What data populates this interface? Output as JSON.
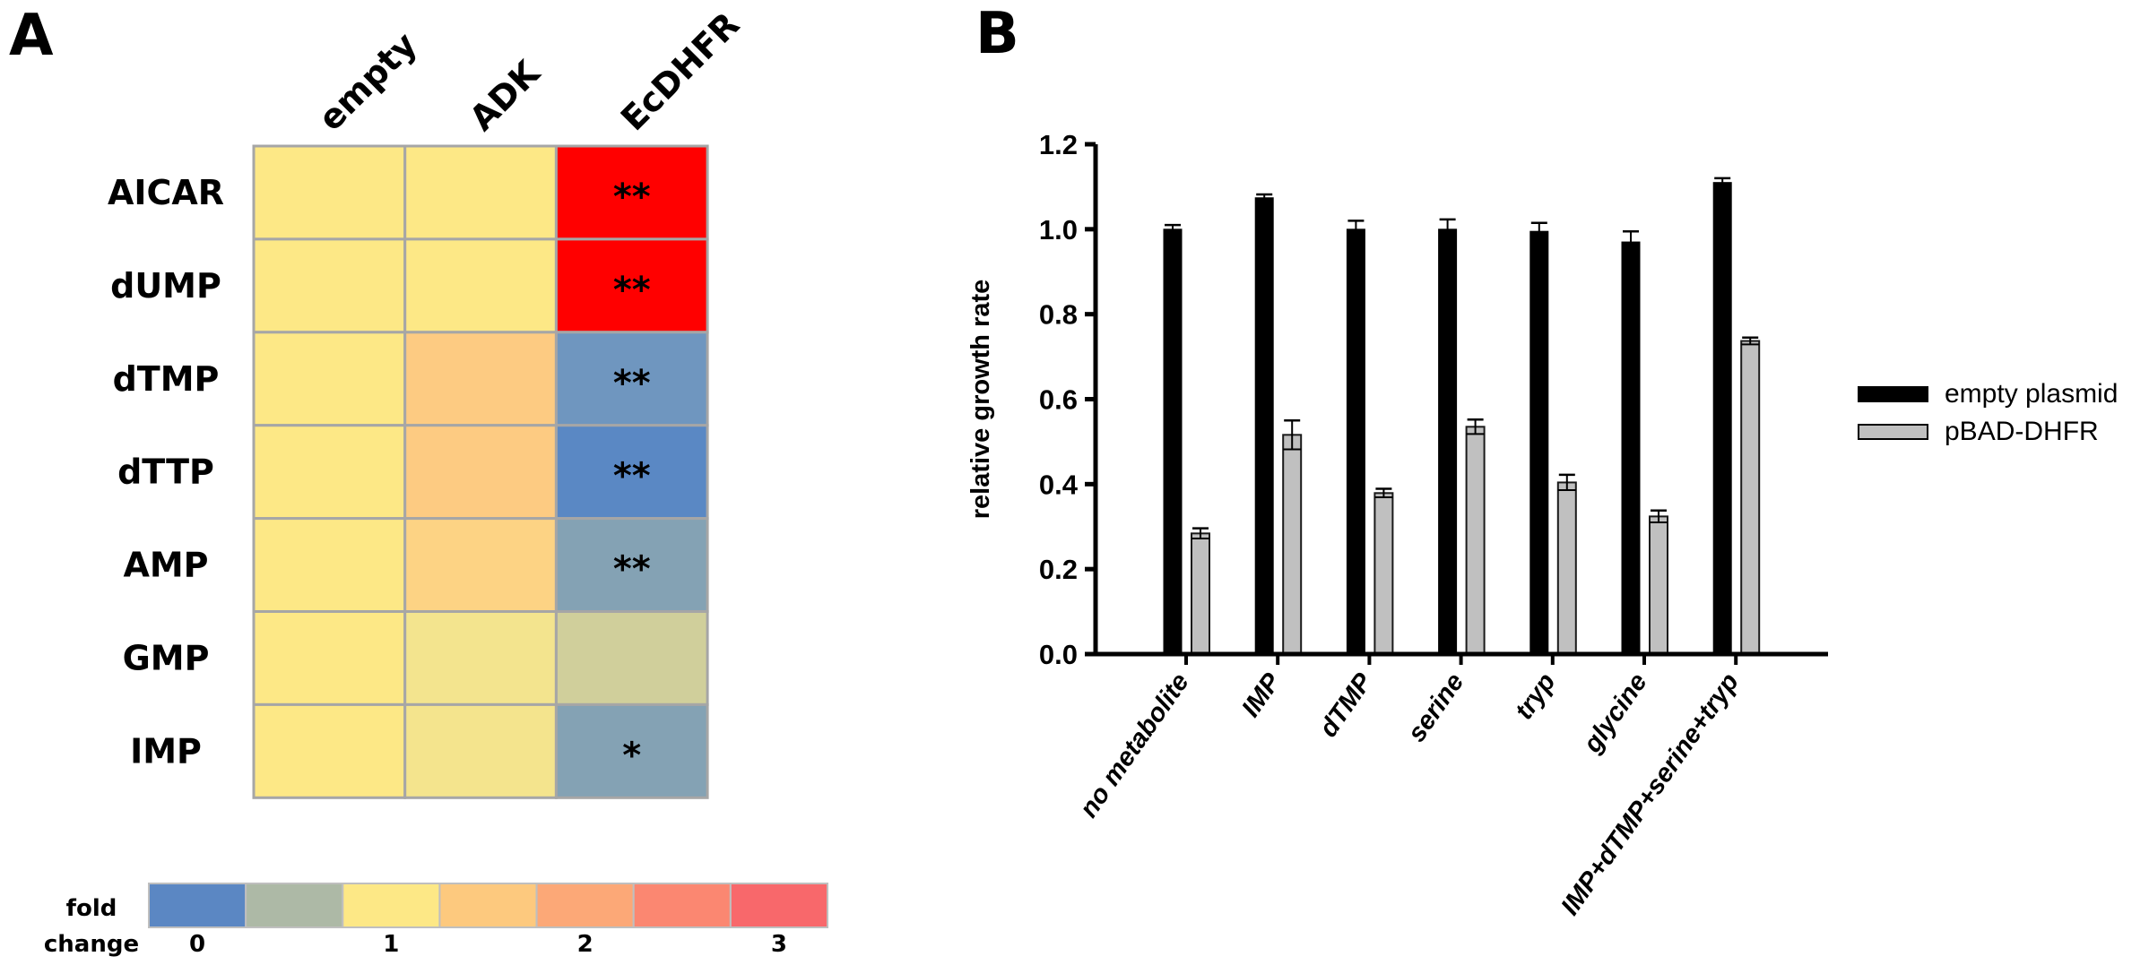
{
  "panels": {
    "a_letter": "A",
    "b_letter": "B"
  },
  "chart_data": [
    {
      "type": "heatmap",
      "panel": "A",
      "columns": [
        "empty",
        "ADK",
        "EcDHFR"
      ],
      "rows": [
        "AICAR",
        "dUMP",
        "dTMP",
        "dTTP",
        "AMP",
        "GMP",
        "IMP"
      ],
      "cell_colors": [
        [
          "#FDE886",
          "#FDE886",
          "#FF0000"
        ],
        [
          "#FDE886",
          "#FDE886",
          "#FF0000"
        ],
        [
          "#FDE886",
          "#FDCB82",
          "#6F96BF"
        ],
        [
          "#FDE886",
          "#FDCB82",
          "#5A88C4"
        ],
        [
          "#FDE886",
          "#FDD384",
          "#84A2B4"
        ],
        [
          "#FDE886",
          "#F3E48E",
          "#D0CF9B"
        ],
        [
          "#FDE886",
          "#F4E48D",
          "#84A2B4"
        ]
      ],
      "significance": [
        [
          "",
          "",
          "**"
        ],
        [
          "",
          "",
          "**"
        ],
        [
          "",
          "",
          "**"
        ],
        [
          "",
          "",
          "**"
        ],
        [
          "",
          "",
          "**"
        ],
        [
          "",
          "",
          ""
        ],
        [
          "",
          "",
          "*"
        ]
      ],
      "colorscale": {
        "label_line1": "fold",
        "label_line2": "change",
        "colors": [
          "#5B87C3",
          "#ADB9A6",
          "#FDE886",
          "#FDC97E",
          "#FCA877",
          "#FB8771",
          "#F8686B"
        ],
        "ticks": [
          "0",
          "1",
          "2",
          "3"
        ],
        "range": [
          0,
          3
        ]
      }
    },
    {
      "type": "bar",
      "panel": "B",
      "ylabel": "relative growth rate",
      "xlabel": "",
      "ylim": [
        0,
        1.2
      ],
      "yticks": [
        "0.0",
        "0.2",
        "0.4",
        "0.6",
        "0.8",
        "1.0",
        "1.2"
      ],
      "categories": [
        "no metabolite",
        "IMP",
        "dTMP",
        "serine",
        "tryp",
        "glycine",
        "IMP+dTMP+serine+tryp"
      ],
      "series": [
        {
          "name": "empty plasmid",
          "color": "#000000",
          "values": [
            1.0,
            1.074,
            1.0,
            1.0,
            0.995,
            0.97,
            1.11
          ],
          "errors": [
            0.01,
            0.008,
            0.02,
            0.023,
            0.02,
            0.025,
            0.01
          ]
        },
        {
          "name": "pBAD-DHFR",
          "color": "#C0C0C0",
          "values": [
            0.284,
            0.516,
            0.379,
            0.535,
            0.404,
            0.324,
            0.737
          ],
          "errors": [
            0.012,
            0.034,
            0.01,
            0.017,
            0.018,
            0.014,
            0.008
          ]
        }
      ],
      "legend_position": "right"
    }
  ]
}
